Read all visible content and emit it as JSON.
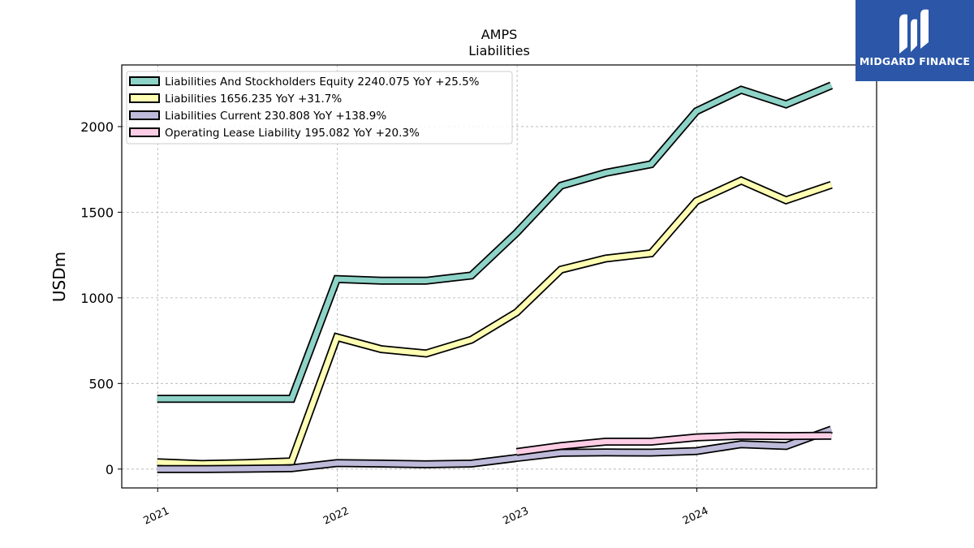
{
  "brand": {
    "name": "MIDGARD FINANCE",
    "bg": "#2c57a8"
  },
  "chart_data": {
    "type": "line",
    "title": "AMPS",
    "subtitle": "Liabilities",
    "xlabel": "",
    "ylabel": "USDm",
    "x_ticks": [
      "2021",
      "2022",
      "2023",
      "2024"
    ],
    "y_ticks": [
      0,
      500,
      1000,
      1500,
      2000
    ],
    "xlim": [
      "2020-10-20",
      "2024-12-31"
    ],
    "ylim": [
      -110,
      2360
    ],
    "grid": true,
    "legend_position": "upper-left",
    "series": [
      {
        "name": "Liabilities And Stockholders Equity",
        "legend": "Liabilities And Stockholders Equity  2240.075 YoY +25.5%",
        "color": "#8dd3c7",
        "x": [
          "2020-12-31",
          "2021-03-31",
          "2021-06-30",
          "2021-09-30",
          "2021-12-31",
          "2022-03-31",
          "2022-06-30",
          "2022-09-30",
          "2022-12-31",
          "2023-03-31",
          "2023-06-30",
          "2023-09-30",
          "2023-12-31",
          "2024-03-31",
          "2024-06-30",
          "2024-09-30"
        ],
        "values": [
          410,
          410,
          410,
          410,
          1110,
          1100,
          1100,
          1130,
          1380,
          1655,
          1730,
          1780,
          2090,
          2215,
          2130,
          2240
        ]
      },
      {
        "name": "Liabilities",
        "legend": "Liabilities  1656.235 YoY +31.7%",
        "color": "#ffffb3",
        "x": [
          "2020-12-31",
          "2021-03-31",
          "2021-06-30",
          "2021-09-30",
          "2021-12-31",
          "2022-03-31",
          "2022-06-30",
          "2022-09-30",
          "2022-12-31",
          "2023-03-31",
          "2023-06-30",
          "2023-09-30",
          "2023-12-31",
          "2024-03-31",
          "2024-06-30",
          "2024-09-30"
        ],
        "values": [
          40,
          30,
          35,
          45,
          770,
          700,
          675,
          755,
          915,
          1165,
          1230,
          1260,
          1565,
          1685,
          1570,
          1660
        ]
      },
      {
        "name": "Liabilities Current",
        "legend": "Liabilities Current  230.808 YoY +138.9%",
        "color": "#bebada",
        "x": [
          "2020-12-31",
          "2021-03-31",
          "2021-06-30",
          "2021-09-30",
          "2021-12-31",
          "2022-03-31",
          "2022-06-30",
          "2022-09-30",
          "2022-12-31",
          "2023-03-31",
          "2023-06-30",
          "2023-09-30",
          "2023-12-31",
          "2024-03-31",
          "2024-06-30",
          "2024-09-30"
        ],
        "values": [
          0,
          0,
          2,
          5,
          35,
          32,
          28,
          32,
          65,
          95,
          97,
          96,
          105,
          145,
          135,
          231
        ]
      },
      {
        "name": "Operating Lease Liability",
        "legend": "Operating Lease Liability  195.082 YoY +20.3%",
        "color": "#fccde5",
        "x": [
          "2022-12-31",
          "2023-03-31",
          "2023-06-30",
          "2023-09-30",
          "2023-12-31",
          "2024-03-31",
          "2024-06-30",
          "2024-09-30"
        ],
        "values": [
          100,
          135,
          160,
          160,
          185,
          195,
          193,
          195
        ]
      }
    ]
  }
}
